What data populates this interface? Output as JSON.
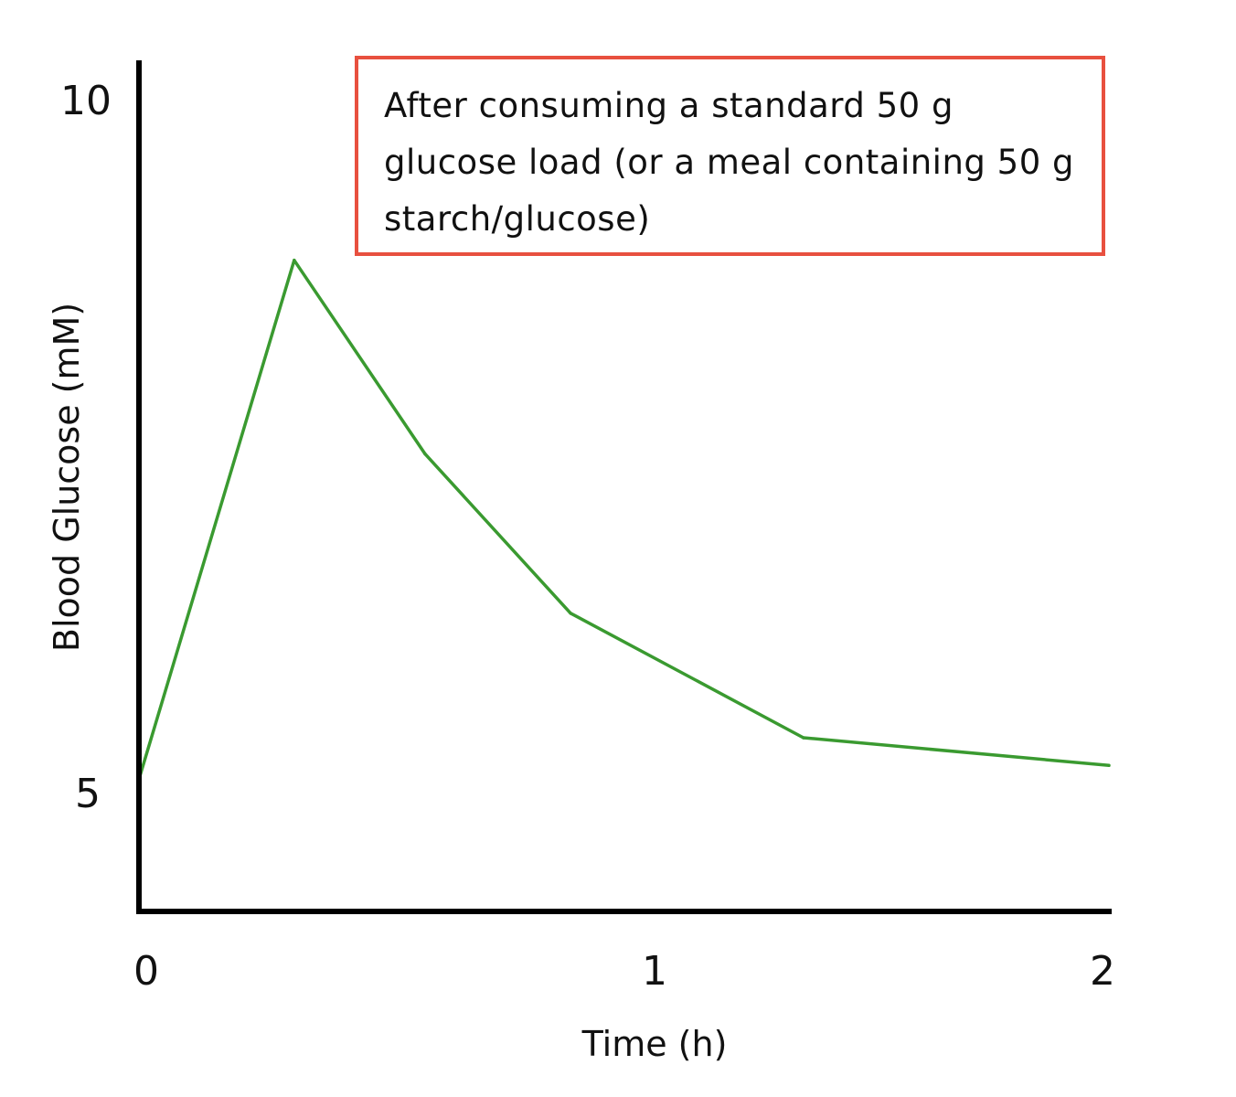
{
  "chart_data": {
    "type": "line",
    "title": "",
    "xlabel": "Time (h)",
    "ylabel": "Blood Glucose (mM)",
    "xlim": [
      0,
      2
    ],
    "ylim": [
      3.2,
      10.5
    ],
    "x_ticks": [
      "0",
      "1",
      "2"
    ],
    "y_ticks": [
      "5",
      "10"
    ],
    "grid": false,
    "legend": "none",
    "series": [
      {
        "color": "#3a9a30",
        "points": [
          {
            "x": 0,
            "y": 5.05
          },
          {
            "x": 0.32,
            "y": 8.8
          },
          {
            "x": 0.59,
            "y": 7.4
          },
          {
            "x": 0.89,
            "y": 6.25
          },
          {
            "x": 1.37,
            "y": 5.35
          },
          {
            "x": 2.0,
            "y": 5.15
          }
        ]
      }
    ],
    "annotation": "After consuming a standard 50 g glucose load (or a meal containing 50 g starch/glucose)",
    "annotation_border_color": "#e8503f"
  }
}
